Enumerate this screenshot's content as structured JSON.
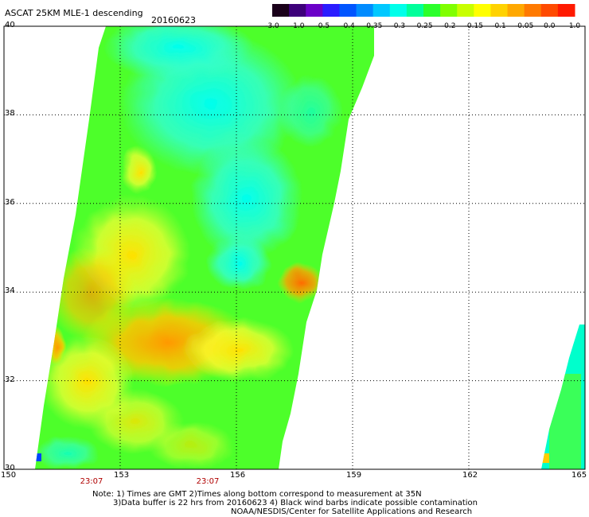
{
  "header": {
    "title": "ASCAT 25KM MLE-1 descending",
    "date": "20160623"
  },
  "colorbar": {
    "labels": [
      "-3.0",
      "-1.0",
      "-0.5",
      "-0.4",
      "-0.35",
      "-0.3",
      "-0.25",
      "-0.2",
      "-0.15",
      "-0.1",
      "-0.05",
      "0.0",
      "1.0"
    ],
    "colors": [
      "#1a001a",
      "#3d007a",
      "#6a00c8",
      "#2a1cff",
      "#0055ff",
      "#008cff",
      "#00c8ff",
      "#00ffea",
      "#00ff9a",
      "#2bff2b",
      "#80ff00",
      "#c8ff00",
      "#ffff00",
      "#ffd200",
      "#ffa800",
      "#ff7a00",
      "#ff4a00",
      "#ff1a00"
    ]
  },
  "axes": {
    "lat_labels": [
      "40",
      "38",
      "36",
      "34",
      "32",
      "30"
    ],
    "lon_labels": [
      "150",
      "153",
      "156",
      "159",
      "162",
      "165"
    ],
    "lat_range": [
      30,
      40
    ],
    "lon_range": [
      150,
      165
    ],
    "grid": "dotted"
  },
  "times": [
    {
      "label": "23:07",
      "lon": 153
    },
    {
      "label": "23:07",
      "lon": 156
    }
  ],
  "notes": {
    "line1": "Note: 1) Times are GMT 2)Times along bottom correspond to measurement at 35N",
    "line2": "3)Data buffer is 22 hrs from 20160623 4) Black wind barbs indicate possible contamination",
    "line3": "NOAA/NESDIS/Center for Satellite Applications and Research"
  }
}
